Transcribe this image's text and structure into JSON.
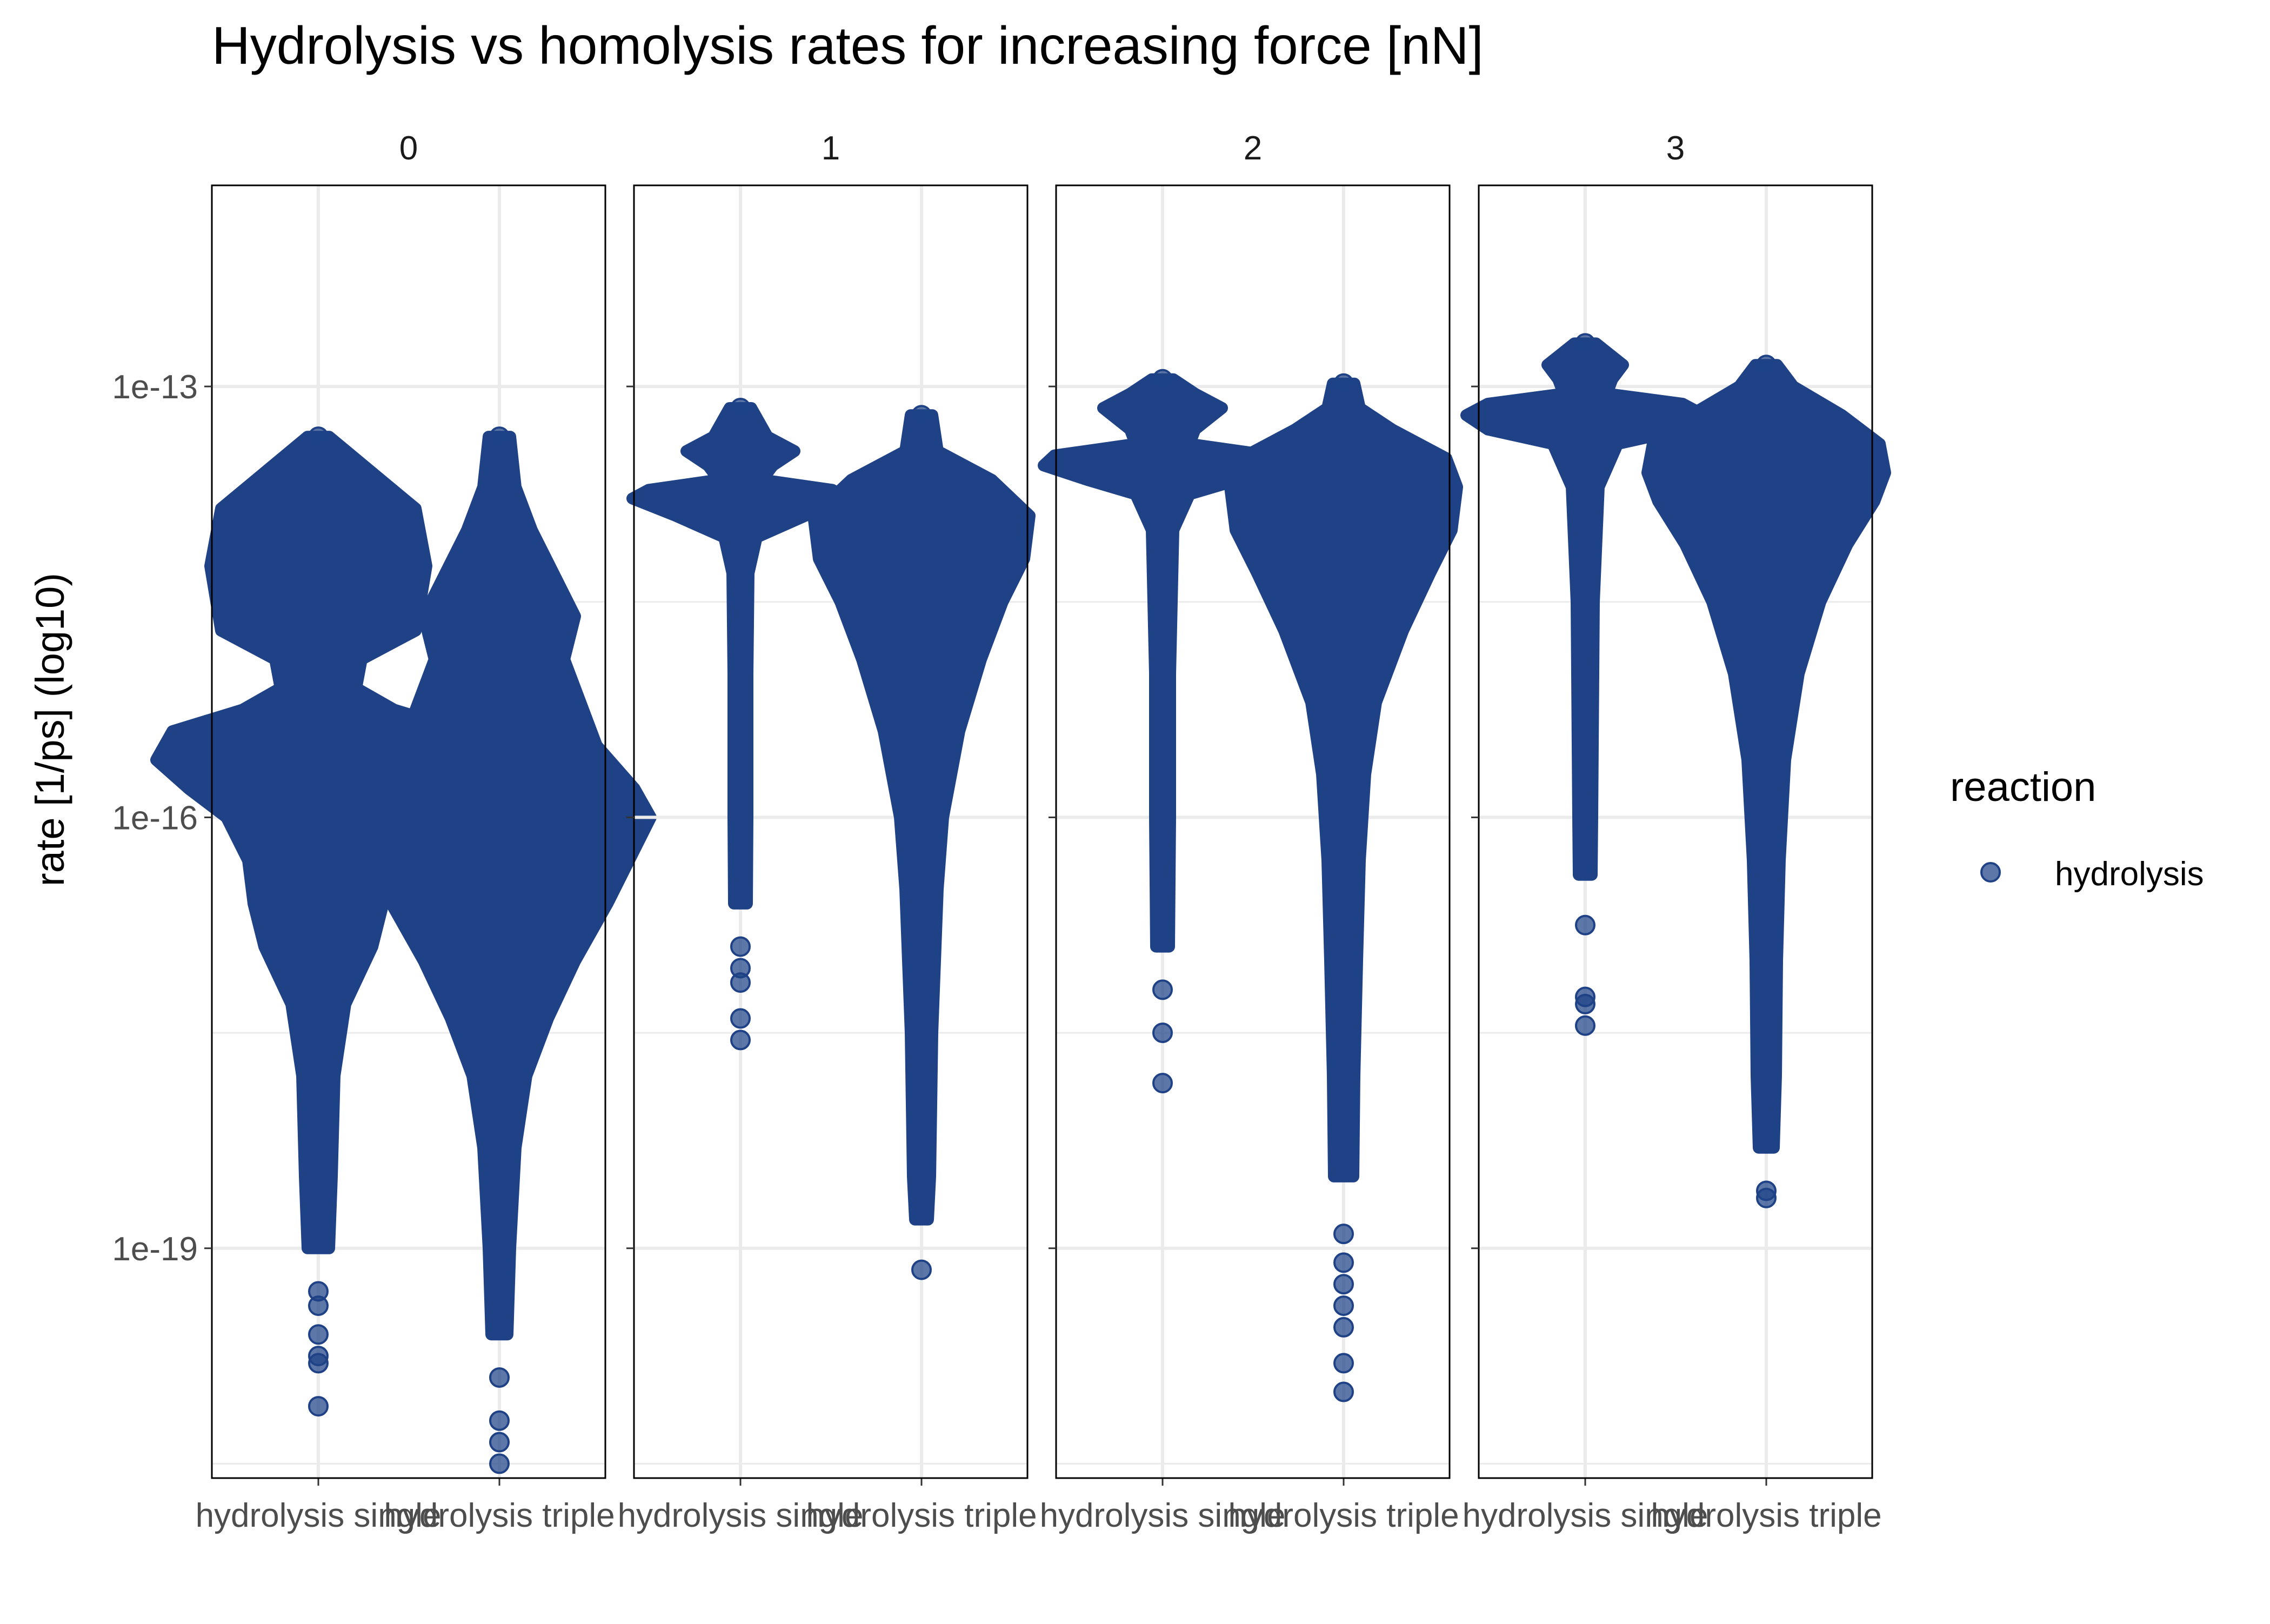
{
  "chart_data": {
    "type": "violin-beeswarm",
    "title": "Hydrolysis vs homolysis rates for increasing force [nN]",
    "facet_labels": [
      "0",
      "1",
      "2",
      "3"
    ],
    "xlabel": "",
    "ylabel": "rate [1/ps] (log10)",
    "y_scale": "log10",
    "y_range_log10": [
      -20.6,
      -11.6
    ],
    "y_ticks": [
      {
        "value_log10": -13,
        "label": "1e-13"
      },
      {
        "value_log10": -16,
        "label": "1e-16"
      },
      {
        "value_log10": -19,
        "label": "1e-19"
      }
    ],
    "categories": [
      "hydrolysis single",
      "hydrolysis triple"
    ],
    "legend": {
      "title": "reaction",
      "items": [
        {
          "label": "hydrolysis",
          "color": "#1F4287"
        }
      ],
      "position": "right"
    },
    "point_color": "#1F4287",
    "grid": true,
    "panels": [
      {
        "facet": "0",
        "groups": [
          {
            "category": "hydrolysis single",
            "profile_log10": [
              [
                -13.35,
                0.02
              ],
              [
                -13.6,
                0.1
              ],
              [
                -13.85,
                0.18
              ],
              [
                -14.25,
                0.2
              ],
              [
                -14.7,
                0.18
              ],
              [
                -14.9,
                0.08
              ],
              [
                -15.1,
                0.07
              ],
              [
                -15.25,
                0.14
              ],
              [
                -15.4,
                0.27
              ],
              [
                -15.6,
                0.3
              ],
              [
                -15.8,
                0.24
              ],
              [
                -16.0,
                0.17
              ],
              [
                -16.3,
                0.13
              ],
              [
                -16.6,
                0.12
              ],
              [
                -16.9,
                0.1
              ],
              [
                -17.3,
                0.05
              ],
              [
                -17.8,
                0.03
              ],
              [
                -18.5,
                0.025
              ],
              [
                -19.0,
                0.02
              ]
            ],
            "outliers_log10": [
              -19.3,
              -19.4,
              -19.6,
              -19.75,
              -19.8,
              -20.1
            ]
          },
          {
            "category": "hydrolysis triple",
            "profile_log10": [
              [
                -13.35,
                0.02
              ],
              [
                -13.7,
                0.03
              ],
              [
                -14.0,
                0.06
              ],
              [
                -14.3,
                0.1
              ],
              [
                -14.6,
                0.14
              ],
              [
                -14.9,
                0.12
              ],
              [
                -15.2,
                0.15
              ],
              [
                -15.5,
                0.18
              ],
              [
                -15.8,
                0.25
              ],
              [
                -16.0,
                0.28
              ],
              [
                -16.3,
                0.24
              ],
              [
                -16.6,
                0.2
              ],
              [
                -17.0,
                0.14
              ],
              [
                -17.4,
                0.09
              ],
              [
                -17.8,
                0.05
              ],
              [
                -18.3,
                0.03
              ],
              [
                -19.0,
                0.02
              ],
              [
                -19.6,
                0.015
              ]
            ],
            "outliers_log10": [
              -19.9,
              -20.2,
              -20.35,
              -20.5
            ]
          }
        ]
      },
      {
        "facet": "1",
        "groups": [
          {
            "category": "hydrolysis single",
            "profile_log10": [
              [
                -13.15,
                0.02
              ],
              [
                -13.35,
                0.05
              ],
              [
                -13.45,
                0.1
              ],
              [
                -13.55,
                0.06
              ],
              [
                -13.65,
                0.04
              ],
              [
                -13.72,
                0.17
              ],
              [
                -13.78,
                0.2
              ],
              [
                -13.9,
                0.12
              ],
              [
                -14.05,
                0.03
              ],
              [
                -14.3,
                0.015
              ],
              [
                -15.0,
                0.013
              ],
              [
                -16.0,
                0.013
              ],
              [
                -16.6,
                0.012
              ]
            ],
            "outliers_log10": [
              -16.9,
              -17.05,
              -17.15,
              -17.4,
              -17.55
            ]
          },
          {
            "category": "hydrolysis triple",
            "profile_log10": [
              [
                -13.2,
                0.02
              ],
              [
                -13.45,
                0.03
              ],
              [
                -13.65,
                0.13
              ],
              [
                -13.9,
                0.2
              ],
              [
                -14.2,
                0.19
              ],
              [
                -14.5,
                0.15
              ],
              [
                -14.9,
                0.11
              ],
              [
                -15.4,
                0.07
              ],
              [
                -16.0,
                0.04
              ],
              [
                -16.5,
                0.03
              ],
              [
                -17.0,
                0.025
              ],
              [
                -17.5,
                0.02
              ],
              [
                -18.0,
                0.018
              ],
              [
                -18.5,
                0.016
              ],
              [
                -18.8,
                0.012
              ]
            ],
            "outliers_log10": [
              -19.15
            ]
          }
        ]
      },
      {
        "facet": "2",
        "groups": [
          {
            "category": "hydrolysis single",
            "profile_log10": [
              [
                -12.95,
                0.02
              ],
              [
                -13.05,
                0.06
              ],
              [
                -13.15,
                0.11
              ],
              [
                -13.3,
                0.06
              ],
              [
                -13.4,
                0.05
              ],
              [
                -13.48,
                0.2
              ],
              [
                -13.55,
                0.22
              ],
              [
                -13.65,
                0.14
              ],
              [
                -13.75,
                0.05
              ],
              [
                -14.0,
                0.02
              ],
              [
                -15.0,
                0.014
              ],
              [
                -16.0,
                0.014
              ],
              [
                -16.9,
                0.012
              ]
            ],
            "outliers_log10": [
              -17.2,
              -17.5,
              -17.85
            ]
          },
          {
            "category": "hydrolysis triple",
            "profile_log10": [
              [
                -12.98,
                0.02
              ],
              [
                -13.15,
                0.03
              ],
              [
                -13.3,
                0.09
              ],
              [
                -13.5,
                0.19
              ],
              [
                -13.7,
                0.21
              ],
              [
                -14.0,
                0.2
              ],
              [
                -14.3,
                0.16
              ],
              [
                -14.7,
                0.11
              ],
              [
                -15.2,
                0.06
              ],
              [
                -15.7,
                0.04
              ],
              [
                -16.3,
                0.03
              ],
              [
                -17.0,
                0.025
              ],
              [
                -17.8,
                0.02
              ],
              [
                -18.5,
                0.018
              ]
            ],
            "outliers_log10": [
              -18.9,
              -19.1,
              -19.25,
              -19.4,
              -19.55,
              -19.8,
              -20.0
            ]
          }
        ]
      },
      {
        "facet": "3",
        "groups": [
          {
            "category": "hydrolysis single",
            "profile_log10": [
              [
                -12.7,
                0.02
              ],
              [
                -12.85,
                0.07
              ],
              [
                -12.95,
                0.05
              ],
              [
                -13.05,
                0.04
              ],
              [
                -13.12,
                0.18
              ],
              [
                -13.2,
                0.22
              ],
              [
                -13.3,
                0.18
              ],
              [
                -13.4,
                0.06
              ],
              [
                -13.7,
                0.025
              ],
              [
                -14.5,
                0.016
              ],
              [
                -15.5,
                0.014
              ],
              [
                -16.0,
                0.013
              ],
              [
                -16.4,
                0.012
              ]
            ],
            "outliers_log10": [
              -16.75,
              -17.25,
              -17.3,
              -17.45
            ]
          },
          {
            "category": "hydrolysis triple",
            "profile_log10": [
              [
                -12.85,
                0.02
              ],
              [
                -13.0,
                0.05
              ],
              [
                -13.2,
                0.14
              ],
              [
                -13.4,
                0.21
              ],
              [
                -13.6,
                0.22
              ],
              [
                -13.8,
                0.2
              ],
              [
                -14.1,
                0.15
              ],
              [
                -14.5,
                0.1
              ],
              [
                -15.0,
                0.06
              ],
              [
                -15.6,
                0.035
              ],
              [
                -16.3,
                0.025
              ],
              [
                -17.0,
                0.02
              ],
              [
                -17.8,
                0.018
              ],
              [
                -18.3,
                0.014
              ]
            ],
            "outliers_log10": [
              -18.6,
              -18.65
            ]
          }
        ]
      }
    ]
  }
}
